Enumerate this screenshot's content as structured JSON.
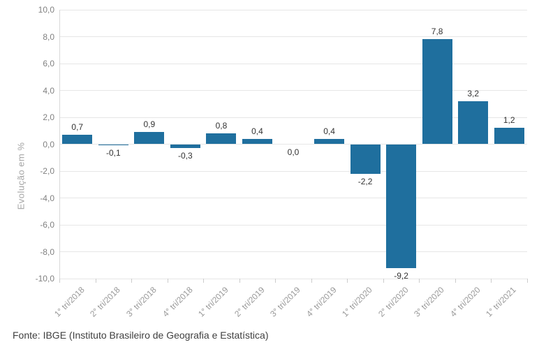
{
  "chart_data": {
    "type": "bar",
    "title": "",
    "xlabel": "",
    "ylabel": "Evolução em %",
    "categories": [
      "1° tri/2018",
      "2° tri/2018",
      "3° tri/2018",
      "4° tri/2018",
      "1° tri/2019",
      "2° tri/2019",
      "3° tri/2019",
      "4° tri/2019",
      "1° tri/2020",
      "2° tri/2020",
      "3° tri/2020",
      "4° tri/2020",
      "1° tri/2021"
    ],
    "values": [
      0.7,
      -0.1,
      0.9,
      -0.3,
      0.8,
      0.4,
      0.0,
      0.4,
      -2.2,
      -9.2,
      7.8,
      3.2,
      1.2
    ],
    "value_labels": [
      "0,7",
      "-0,1",
      "0,9",
      "-0,3",
      "0,8",
      "0,4",
      "0,0",
      "0,4",
      "-2,2",
      "-9,2",
      "7,8",
      "3,2",
      "1,2"
    ],
    "ylim": [
      -10,
      10
    ],
    "ytick_step": 2,
    "ytick_labels": [
      "10,0",
      "8,0",
      "6,0",
      "4,0",
      "2,0",
      "0,0",
      "-2,0",
      "-4,0",
      "-6,0",
      "-8,0",
      "-10,0"
    ],
    "grid": true,
    "legend": "none",
    "bar_color": "#1f6f9e"
  },
  "footer": {
    "source_text": "Fonte: IBGE (Instituto Brasileiro de Geografia e Estatística)"
  }
}
